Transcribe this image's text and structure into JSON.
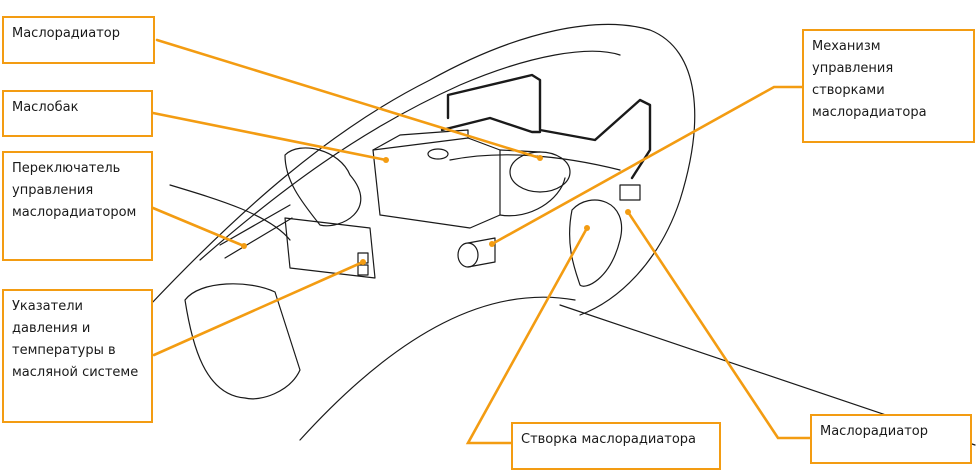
{
  "accent_color": "#f39c12",
  "labels": {
    "oil_radiator_top": "Маслорадиатор",
    "oil_tank": "Маслобак",
    "radiator_control_switch": "Переключатель управления маслорадиатором",
    "pressure_temperature_gauges": "Указатели давления и температуры в масляной системе",
    "radiator_flap_mechanism": "Механизм управления створками маслорадиатора",
    "radiator_flap": "Створка маслорадиатора",
    "oil_radiator_bottom": "Маслорадиатор"
  }
}
